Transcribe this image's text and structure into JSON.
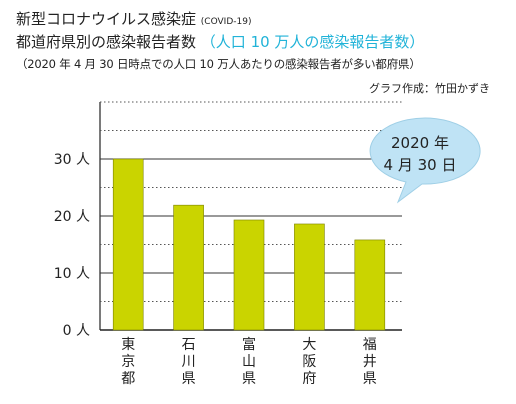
{
  "title": {
    "line1_main": "新型コロナウイルス感染症",
    "line1_small": "(COVID-19)",
    "line2_main": "都道府県別の感染報告者数",
    "line2_highlight": "（人口 10 万人の感染報告者数）",
    "line3": "（2020 年 4 月 30 日時点での人口 10 万人あたりの感染報告者が多い都府県）"
  },
  "credit": "グラフ作成：竹田かずき",
  "bubble": {
    "line1": "2020 年",
    "line2": "4 月 30 日"
  },
  "colors": {
    "bar": "#cad400",
    "bar_stroke": "#7a8000",
    "highlight": "#21b3d8",
    "bubble_fill": "#bfe3f5"
  },
  "chart_data": {
    "type": "bar",
    "categories": [
      "東京都",
      "石川県",
      "富山県",
      "大阪府",
      "福井県"
    ],
    "values": [
      30,
      21.9,
      19.3,
      18.6,
      15.8
    ],
    "ylim": [
      0,
      40
    ],
    "yticks": [
      0,
      10,
      20,
      30
    ],
    "ytick_labels": [
      "0 人",
      "10 人",
      "20 人",
      "30 人"
    ],
    "xlabel": "",
    "ylabel": "",
    "grid": true
  }
}
